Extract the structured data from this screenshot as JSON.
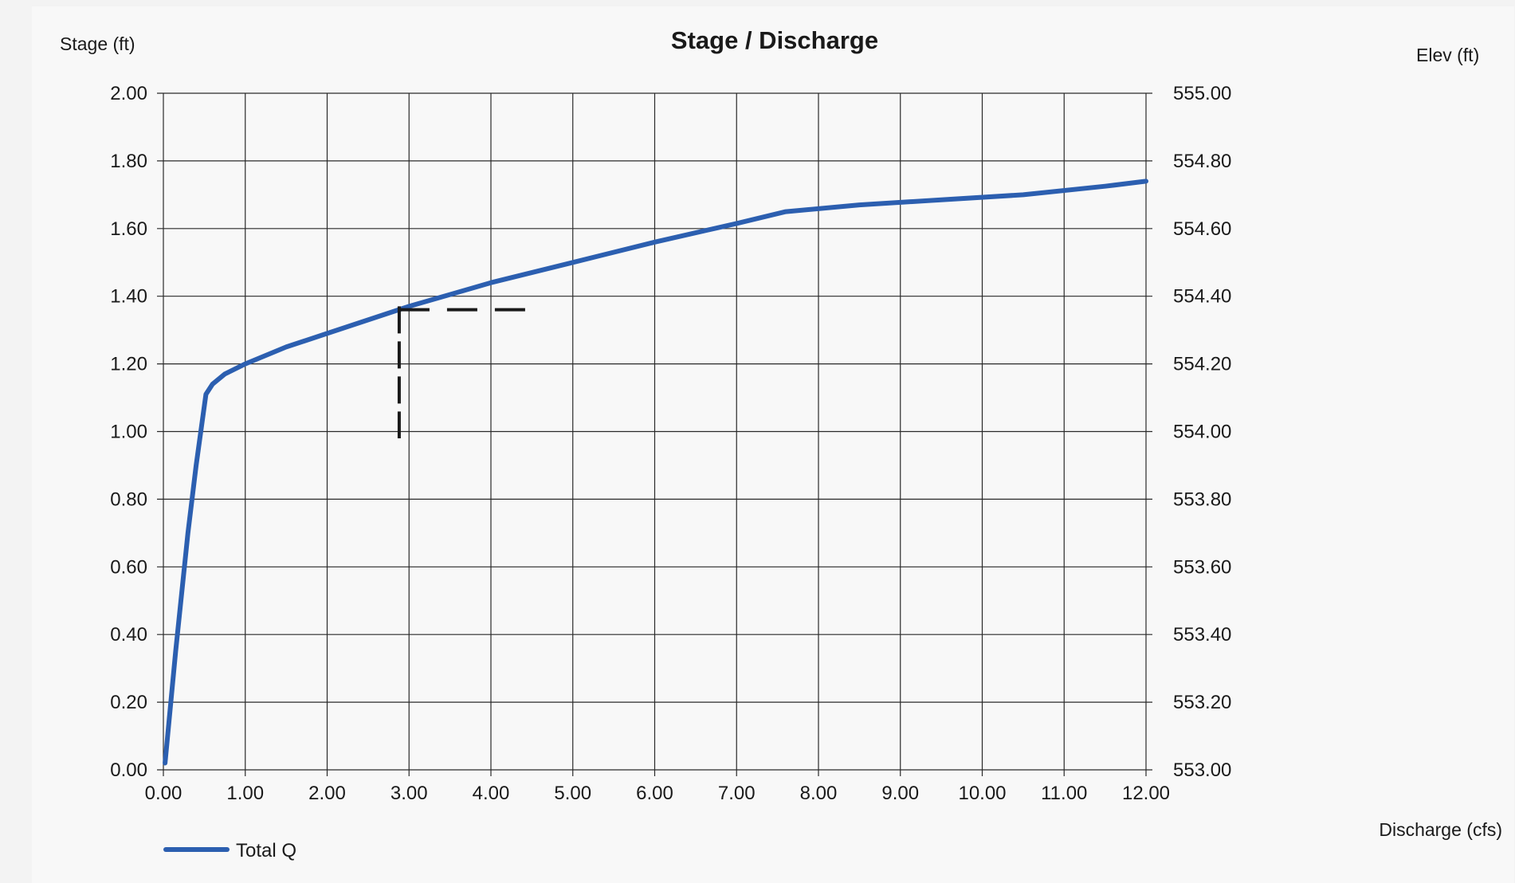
{
  "chart_data": {
    "type": "line",
    "title": "Stage / Discharge",
    "xlabel": "Discharge (cfs)",
    "ylabel": "Stage (ft)",
    "y2label": "Elev (ft)",
    "xlim": [
      0,
      12
    ],
    "ylim": [
      0,
      2
    ],
    "y2lim": [
      553.0,
      555.0
    ],
    "x_ticks": [
      "0.00",
      "1.00",
      "2.00",
      "3.00",
      "4.00",
      "5.00",
      "6.00",
      "7.00",
      "8.00",
      "9.00",
      "10.00",
      "11.00",
      "12.00"
    ],
    "y_ticks": [
      "0.00",
      "0.20",
      "0.40",
      "0.60",
      "0.80",
      "1.00",
      "1.20",
      "1.40",
      "1.60",
      "1.80",
      "2.00"
    ],
    "y2_ticks": [
      "553.00",
      "553.20",
      "553.40",
      "553.60",
      "553.80",
      "554.00",
      "554.20",
      "554.40",
      "554.60",
      "554.80",
      "555.00"
    ],
    "grid": true,
    "legend_position": "bottom-left",
    "series": [
      {
        "name": "Total Q",
        "color": "#2c5fb0",
        "x": [
          0.02,
          0.15,
          0.3,
          0.4,
          0.52,
          0.6,
          0.75,
          1.0,
          1.5,
          2.0,
          2.5,
          3.0,
          3.5,
          4.0,
          5.0,
          6.0,
          7.0,
          7.6,
          8.5,
          9.5,
          10.5,
          11.5,
          12.0
        ],
        "y": [
          0.02,
          0.35,
          0.7,
          0.9,
          1.11,
          1.14,
          1.17,
          1.2,
          1.25,
          1.29,
          1.33,
          1.37,
          1.405,
          1.44,
          1.5,
          1.56,
          1.615,
          1.65,
          1.67,
          1.685,
          1.7,
          1.725,
          1.74
        ]
      }
    ],
    "annotation": {
      "style": "dashed",
      "color": "#1a1a1a",
      "vertical": {
        "x": 2.88,
        "y_from": 0.98,
        "y_to": 1.37
      },
      "horizontal": {
        "y": 1.36,
        "x_from": 2.88,
        "x_to": 4.45
      }
    }
  }
}
